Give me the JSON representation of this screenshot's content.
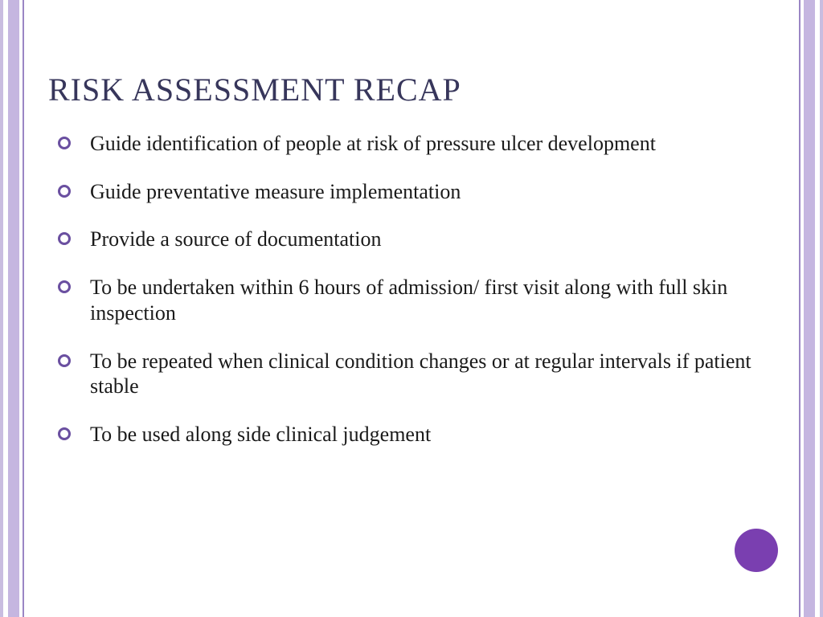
{
  "colors": {
    "border_light": "#c9bde0",
    "border_mid": "#c5b6e0",
    "border_inner": "#9a86c4",
    "title": "#37365b",
    "text": "#1a1a1a",
    "bullet": "#6a4fa0",
    "circle": "#7a3fb0",
    "background": "#ffffff"
  },
  "title": "RISK ASSESSMENT  RECAP",
  "title_fontsize": 40,
  "body_fontsize": 26,
  "bullets": [
    "Guide identification of people at risk of pressure ulcer development",
    "Guide preventative measure implementation",
    "Provide a source of documentation",
    "To be undertaken within 6 hours of admission/ first visit along with full skin inspection",
    "To be repeated when clinical condition changes or at regular intervals if patient stable",
    "To be used along side clinical judgement"
  ]
}
